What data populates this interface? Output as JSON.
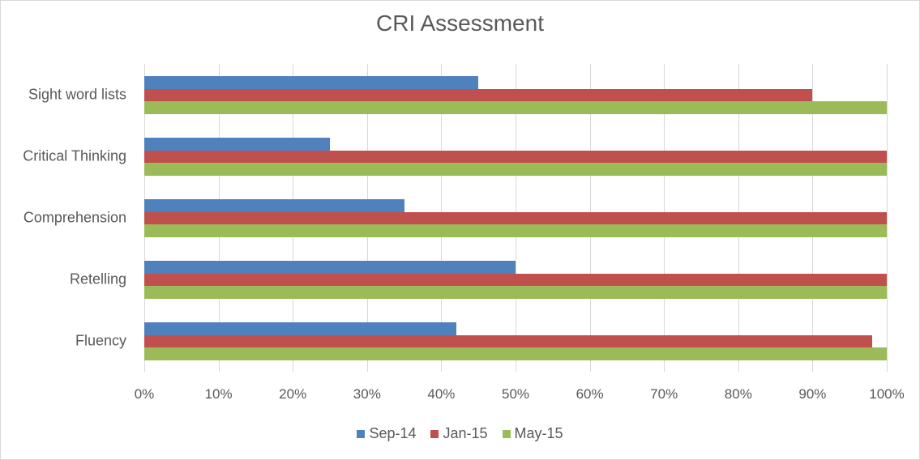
{
  "chart_data": {
    "type": "bar",
    "orientation": "horizontal",
    "title": "CRI Assessment",
    "categories": [
      "Sight word lists",
      "Critical Thinking",
      "Comprehension",
      "Retelling",
      "Fluency"
    ],
    "series": [
      {
        "name": "Sep-14",
        "color": "#4f81bd",
        "values": [
          45,
          25,
          35,
          50,
          42
        ]
      },
      {
        "name": "Jan-15",
        "color": "#c0504d",
        "values": [
          90,
          100,
          100,
          100,
          98
        ]
      },
      {
        "name": "May-15",
        "color": "#9bbb59",
        "values": [
          100,
          100,
          100,
          100,
          100
        ]
      }
    ],
    "xlabel": "",
    "ylabel": "",
    "xlim": [
      0,
      100
    ],
    "x_ticks": [
      "0%",
      "10%",
      "20%",
      "30%",
      "40%",
      "50%",
      "60%",
      "70%",
      "80%",
      "90%",
      "100%"
    ],
    "grid": true,
    "legend_position": "bottom"
  }
}
